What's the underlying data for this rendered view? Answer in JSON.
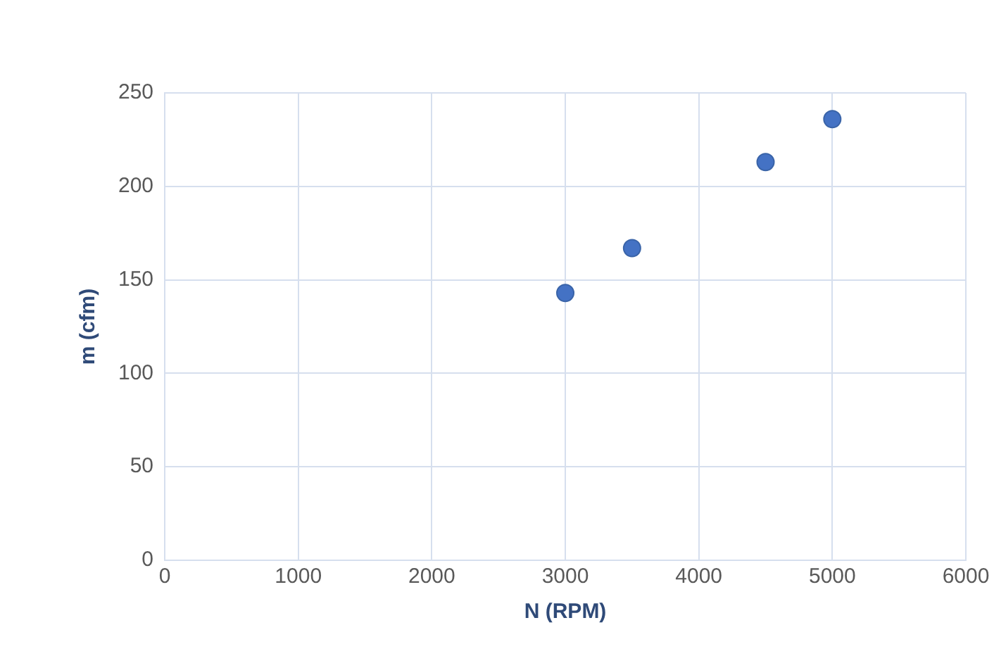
{
  "chart_data": {
    "type": "scatter",
    "xlabel": "N (RPM)",
    "ylabel": "m (cfm)",
    "x": [
      3000,
      3500,
      4500,
      5000
    ],
    "series": [
      {
        "color": "#4472c4",
        "values": [
          143,
          167,
          213,
          236
        ]
      }
    ],
    "xlim": [
      0,
      6000
    ],
    "xticks": [
      0,
      1000,
      2000,
      3000,
      4000,
      5000,
      6000
    ],
    "ylim": [
      0,
      250
    ],
    "yticks": [
      0,
      50,
      100,
      150,
      200,
      250
    ],
    "grid": true,
    "marker": "circle",
    "legend": false
  }
}
